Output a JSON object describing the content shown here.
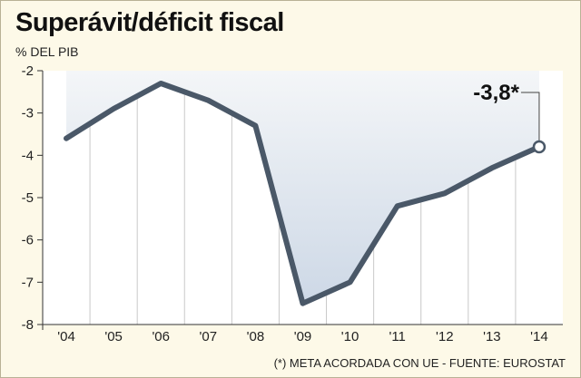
{
  "title": "Superávit/déficit fiscal",
  "unit_label": "% DEL PIB",
  "source_note": "(*) META ACORDADA CON UE - FUENTE: EUROSTAT",
  "colors": {
    "background": "#fdf9e8",
    "plot_background": "#ffffff",
    "line": "#4a5868",
    "fill_top": "#f4f6f8",
    "fill_bottom": "#cdd8e6",
    "grid": "#c9c9c9"
  },
  "chart_data": {
    "type": "area",
    "title": "Superávit/déficit fiscal",
    "ylabel": "% DEL PIB",
    "xlabel": "",
    "x": [
      "'04",
      "'05",
      "'06",
      "'07",
      "'08",
      "'09",
      "'10",
      "'11",
      "'12",
      "'13",
      "'14"
    ],
    "series": [
      {
        "values": [
          -3.6,
          -2.9,
          -2.3,
          -2.7,
          -3.3,
          -7.5,
          -7.0,
          -5.2,
          -4.9,
          -4.3,
          -3.8
        ]
      }
    ],
    "ylim": [
      -8,
      -2
    ],
    "yticks": [
      -2,
      -3,
      -4,
      -5,
      -6,
      -7,
      -8
    ],
    "grid": "vertical",
    "annotations": [
      {
        "x": "'14",
        "y": -3.8,
        "text": "-3,8*"
      }
    ]
  }
}
